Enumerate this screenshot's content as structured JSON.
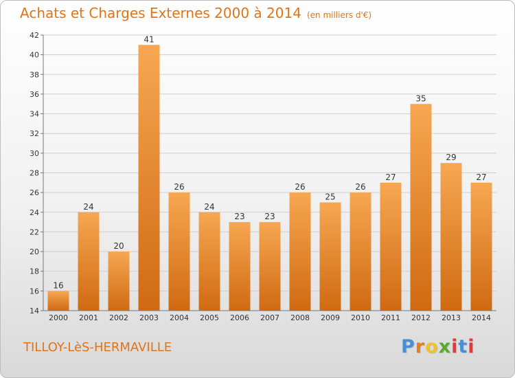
{
  "header": {
    "title": "Achats et Charges Externes 2000 à 2014",
    "unit": "(en milliers d'€)"
  },
  "footer": {
    "place": "TILLOY-LèS-HERMAVILLE",
    "brand": "Proxiti"
  },
  "colors": {
    "bar_light": "#f7a752",
    "bar_dark": "#cf6a12",
    "title": "#e07418"
  },
  "chart_data": {
    "type": "bar",
    "title": "Achats et Charges Externes 2000 à 2014",
    "subtitle": "(en milliers d'€)",
    "categories": [
      "2000",
      "2001",
      "2002",
      "2003",
      "2004",
      "2005",
      "2006",
      "2007",
      "2008",
      "2009",
      "2010",
      "2011",
      "2012",
      "2013",
      "2014"
    ],
    "values": [
      16,
      24,
      20,
      41,
      26,
      24,
      23,
      23,
      26,
      25,
      26,
      27,
      35,
      29,
      27
    ],
    "ylim": [
      14,
      42
    ],
    "yticks": [
      14,
      16,
      18,
      20,
      22,
      24,
      26,
      28,
      30,
      32,
      34,
      36,
      38,
      40,
      42
    ],
    "grid": true,
    "data_labels": true
  }
}
